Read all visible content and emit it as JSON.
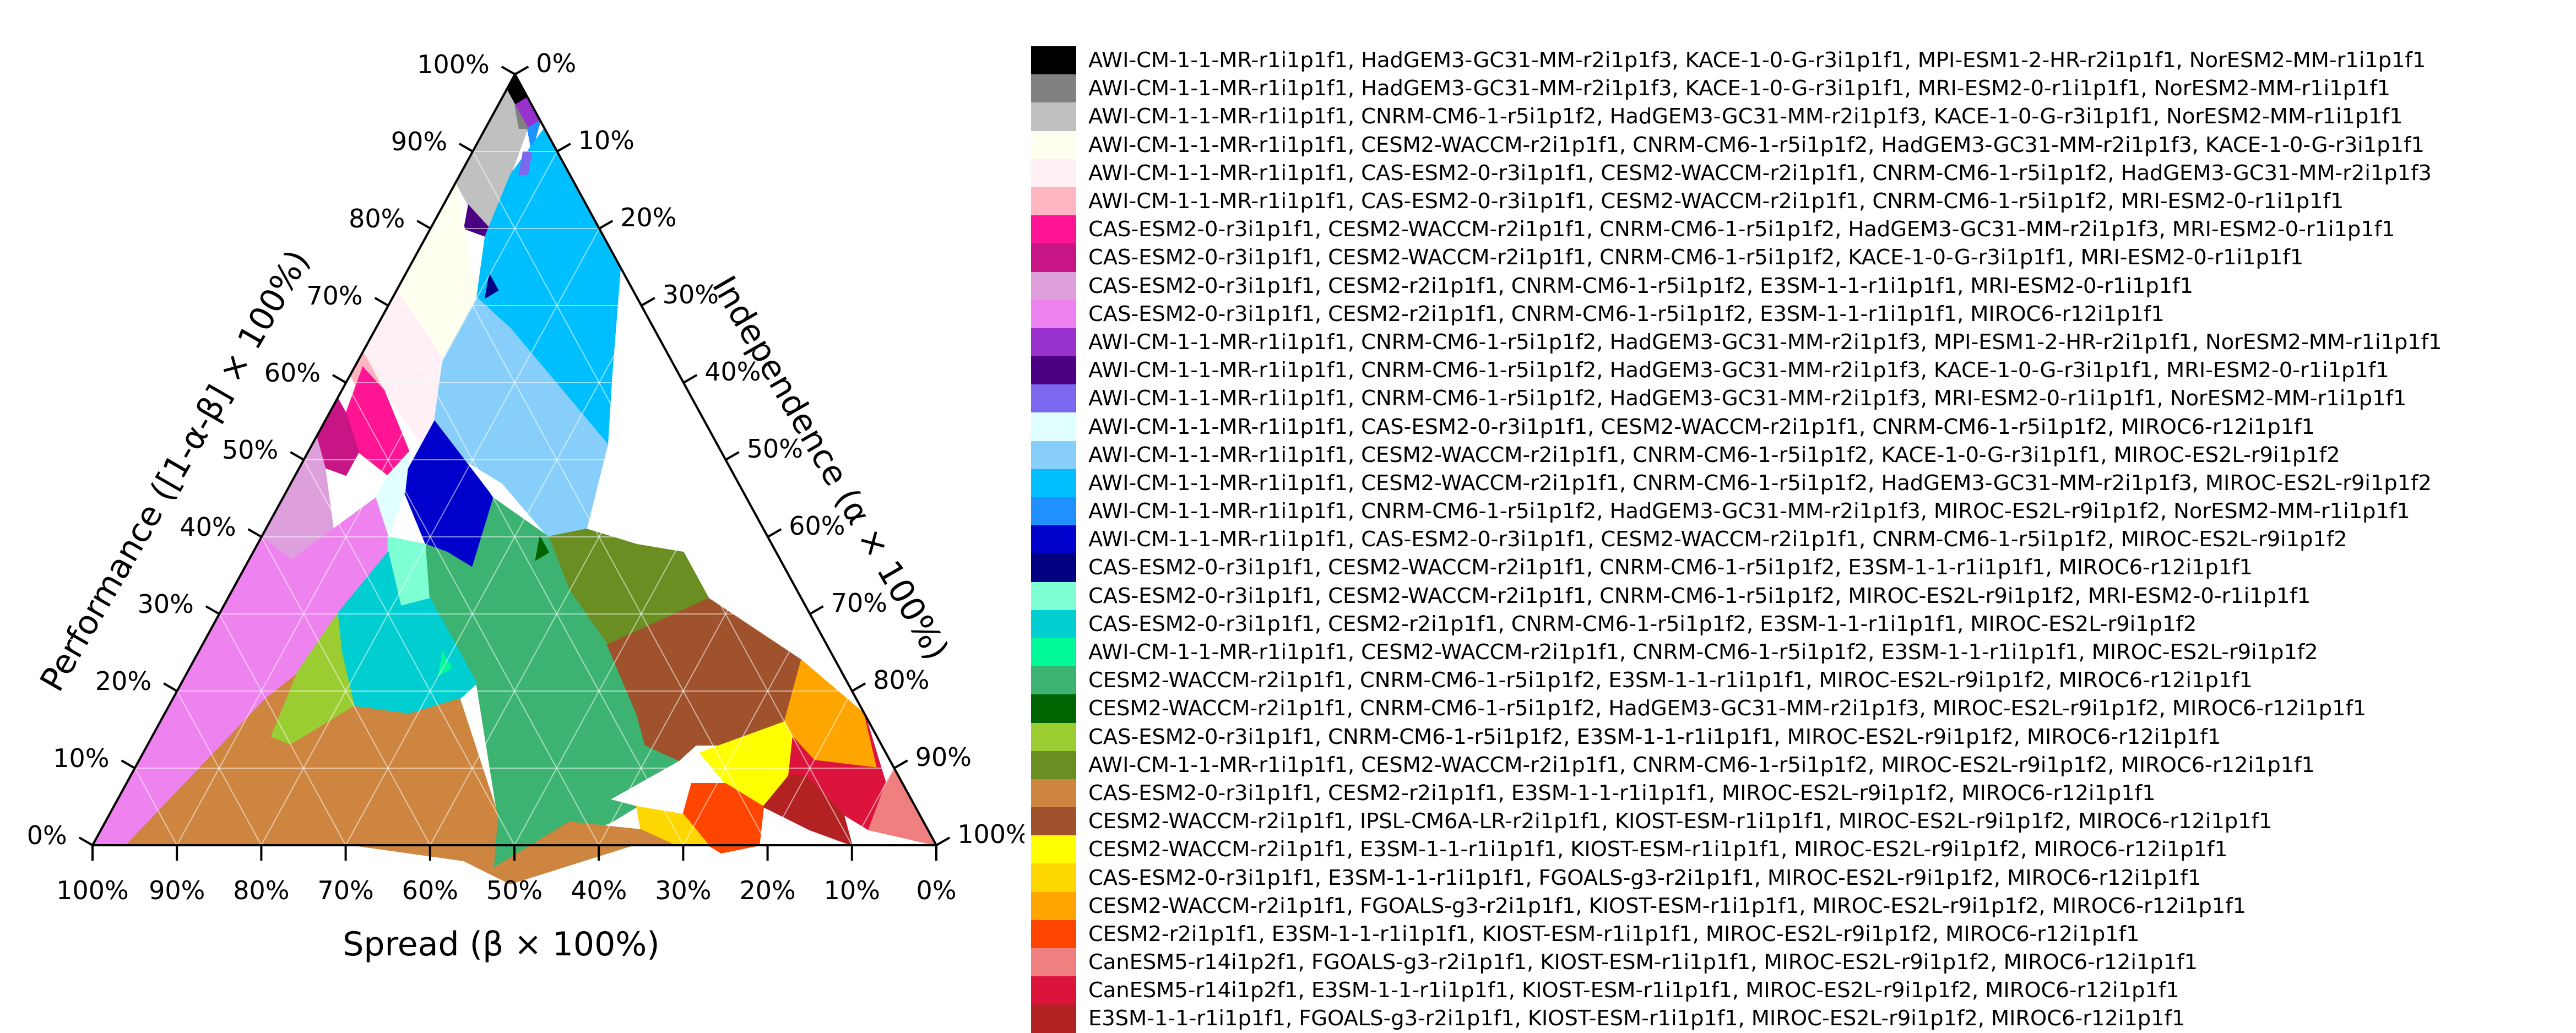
{
  "chart_data": {
    "type": "ternary",
    "axes": {
      "left": {
        "label": "Performance ([1-α-β] × 100%)",
        "ticks": [
          "0%",
          "10%",
          "20%",
          "30%",
          "40%",
          "50%",
          "60%",
          "70%",
          "80%",
          "90%",
          "100%"
        ]
      },
      "right": {
        "label": "Independence (α × 100%)",
        "ticks": [
          "0%",
          "10%",
          "20%",
          "30%",
          "40%",
          "50%",
          "60%",
          "70%",
          "80%",
          "90%",
          "100%"
        ]
      },
      "bottom": {
        "label": "Spread  (β × 100%)",
        "ticks": [
          "100%",
          "90%",
          "80%",
          "70%",
          "60%",
          "50%",
          "40%",
          "30%",
          "20%",
          "10%",
          "0%"
        ]
      }
    },
    "grid": true,
    "legend_position": "right",
    "regions": [
      {
        "label": "AWI-CM-1-1-MR-r1i1p1f1, HadGEM3-GC31-MM-r2i1p1f3, KACE-1-0-G-r3i1p1f1, MPI-ESM1-2-HR-r2i1p1f1, NorESM2-MM-r1i1p1f1",
        "color": "#000000"
      },
      {
        "label": "AWI-CM-1-1-MR-r1i1p1f1, HadGEM3-GC31-MM-r2i1p1f3, KACE-1-0-G-r3i1p1f1, MRI-ESM2-0-r1i1p1f1, NorESM2-MM-r1i1p1f1",
        "color": "#808080"
      },
      {
        "label": "AWI-CM-1-1-MR-r1i1p1f1, CNRM-CM6-1-r5i1p1f2, HadGEM3-GC31-MM-r2i1p1f3, KACE-1-0-G-r3i1p1f1, NorESM2-MM-r1i1p1f1",
        "color": "#c0c0c0"
      },
      {
        "label": "AWI-CM-1-1-MR-r1i1p1f1, CESM2-WACCM-r2i1p1f1, CNRM-CM6-1-r5i1p1f2, HadGEM3-GC31-MM-r2i1p1f3, KACE-1-0-G-r3i1p1f1",
        "color": "#fffff0"
      },
      {
        "label": "AWI-CM-1-1-MR-r1i1p1f1, CAS-ESM2-0-r3i1p1f1, CESM2-WACCM-r2i1p1f1, CNRM-CM6-1-r5i1p1f2, HadGEM3-GC31-MM-r2i1p1f3",
        "color": "#fff0f5"
      },
      {
        "label": "AWI-CM-1-1-MR-r1i1p1f1, CAS-ESM2-0-r3i1p1f1, CESM2-WACCM-r2i1p1f1, CNRM-CM6-1-r5i1p1f2, MRI-ESM2-0-r1i1p1f1",
        "color": "#ffb6c1"
      },
      {
        "label": "CAS-ESM2-0-r3i1p1f1, CESM2-WACCM-r2i1p1f1, CNRM-CM6-1-r5i1p1f2, HadGEM3-GC31-MM-r2i1p1f3, MRI-ESM2-0-r1i1p1f1",
        "color": "#ff1493"
      },
      {
        "label": "CAS-ESM2-0-r3i1p1f1, CESM2-WACCM-r2i1p1f1, CNRM-CM6-1-r5i1p1f2, KACE-1-0-G-r3i1p1f1, MRI-ESM2-0-r1i1p1f1",
        "color": "#c71585"
      },
      {
        "label": "CAS-ESM2-0-r3i1p1f1, CESM2-r2i1p1f1, CNRM-CM6-1-r5i1p1f2, E3SM-1-1-r1i1p1f1, MRI-ESM2-0-r1i1p1f1",
        "color": "#dda0dd"
      },
      {
        "label": "CAS-ESM2-0-r3i1p1f1, CESM2-r2i1p1f1, CNRM-CM6-1-r5i1p1f2, E3SM-1-1-r1i1p1f1, MIROC6-r12i1p1f1",
        "color": "#ee82ee"
      },
      {
        "label": "AWI-CM-1-1-MR-r1i1p1f1, CNRM-CM6-1-r5i1p1f2, HadGEM3-GC31-MM-r2i1p1f3, MPI-ESM1-2-HR-r2i1p1f1, NorESM2-MM-r1i1p1f1",
        "color": "#9932cc"
      },
      {
        "label": "AWI-CM-1-1-MR-r1i1p1f1, CNRM-CM6-1-r5i1p1f2, HadGEM3-GC31-MM-r2i1p1f3, KACE-1-0-G-r3i1p1f1, MRI-ESM2-0-r1i1p1f1",
        "color": "#4b0082"
      },
      {
        "label": "AWI-CM-1-1-MR-r1i1p1f1, CNRM-CM6-1-r5i1p1f2, HadGEM3-GC31-MM-r2i1p1f3, MRI-ESM2-0-r1i1p1f1, NorESM2-MM-r1i1p1f1",
        "color": "#7b68ee"
      },
      {
        "label": "AWI-CM-1-1-MR-r1i1p1f1, CAS-ESM2-0-r3i1p1f1, CESM2-WACCM-r2i1p1f1, CNRM-CM6-1-r5i1p1f2, MIROC6-r12i1p1f1",
        "color": "#e0ffff"
      },
      {
        "label": "AWI-CM-1-1-MR-r1i1p1f1, CESM2-WACCM-r2i1p1f1, CNRM-CM6-1-r5i1p1f2, KACE-1-0-G-r3i1p1f1, MIROC-ES2L-r9i1p1f2",
        "color": "#87cefa"
      },
      {
        "label": "AWI-CM-1-1-MR-r1i1p1f1, CESM2-WACCM-r2i1p1f1, CNRM-CM6-1-r5i1p1f2, HadGEM3-GC31-MM-r2i1p1f3, MIROC-ES2L-r9i1p1f2",
        "color": "#00bfff"
      },
      {
        "label": "AWI-CM-1-1-MR-r1i1p1f1, CNRM-CM6-1-r5i1p1f2, HadGEM3-GC31-MM-r2i1p1f3, MIROC-ES2L-r9i1p1f2, NorESM2-MM-r1i1p1f1",
        "color": "#1e90ff"
      },
      {
        "label": "AWI-CM-1-1-MR-r1i1p1f1, CAS-ESM2-0-r3i1p1f1, CESM2-WACCM-r2i1p1f1, CNRM-CM6-1-r5i1p1f2, MIROC-ES2L-r9i1p1f2",
        "color": "#0000cd"
      },
      {
        "label": "CAS-ESM2-0-r3i1p1f1, CESM2-WACCM-r2i1p1f1, CNRM-CM6-1-r5i1p1f2, E3SM-1-1-r1i1p1f1, MIROC6-r12i1p1f1",
        "color": "#000080"
      },
      {
        "label": "CAS-ESM2-0-r3i1p1f1, CESM2-WACCM-r2i1p1f1, CNRM-CM6-1-r5i1p1f2, MIROC-ES2L-r9i1p1f2, MRI-ESM2-0-r1i1p1f1",
        "color": "#7fffd4"
      },
      {
        "label": "CAS-ESM2-0-r3i1p1f1, CESM2-r2i1p1f1, CNRM-CM6-1-r5i1p1f2, E3SM-1-1-r1i1p1f1, MIROC-ES2L-r9i1p1f2",
        "color": "#00ced1"
      },
      {
        "label": "AWI-CM-1-1-MR-r1i1p1f1, CESM2-WACCM-r2i1p1f1, CNRM-CM6-1-r5i1p1f2, E3SM-1-1-r1i1p1f1, MIROC-ES2L-r9i1p1f2",
        "color": "#00fa9a"
      },
      {
        "label": "CESM2-WACCM-r2i1p1f1, CNRM-CM6-1-r5i1p1f2, E3SM-1-1-r1i1p1f1, MIROC-ES2L-r9i1p1f2, MIROC6-r12i1p1f1",
        "color": "#3cb371"
      },
      {
        "label": "CESM2-WACCM-r2i1p1f1, CNRM-CM6-1-r5i1p1f2, HadGEM3-GC31-MM-r2i1p1f3, MIROC-ES2L-r9i1p1f2, MIROC6-r12i1p1f1",
        "color": "#006400"
      },
      {
        "label": "CAS-ESM2-0-r3i1p1f1, CNRM-CM6-1-r5i1p1f2, E3SM-1-1-r1i1p1f1, MIROC-ES2L-r9i1p1f2, MIROC6-r12i1p1f1",
        "color": "#9acd32"
      },
      {
        "label": "AWI-CM-1-1-MR-r1i1p1f1, CESM2-WACCM-r2i1p1f1, CNRM-CM6-1-r5i1p1f2, MIROC-ES2L-r9i1p1f2, MIROC6-r12i1p1f1",
        "color": "#6b8e23"
      },
      {
        "label": "CAS-ESM2-0-r3i1p1f1, CESM2-r2i1p1f1, E3SM-1-1-r1i1p1f1, MIROC-ES2L-r9i1p1f2, MIROC6-r12i1p1f1",
        "color": "#cd853f"
      },
      {
        "label": "CESM2-WACCM-r2i1p1f1, IPSL-CM6A-LR-r2i1p1f1, KIOST-ESM-r1i1p1f1, MIROC-ES2L-r9i1p1f2, MIROC6-r12i1p1f1",
        "color": "#a0522d"
      },
      {
        "label": "CESM2-WACCM-r2i1p1f1, E3SM-1-1-r1i1p1f1, KIOST-ESM-r1i1p1f1, MIROC-ES2L-r9i1p1f2, MIROC6-r12i1p1f1",
        "color": "#ffff00"
      },
      {
        "label": "CAS-ESM2-0-r3i1p1f1, E3SM-1-1-r1i1p1f1, FGOALS-g3-r2i1p1f1, MIROC-ES2L-r9i1p1f2, MIROC6-r12i1p1f1",
        "color": "#ffd700"
      },
      {
        "label": "CESM2-WACCM-r2i1p1f1, FGOALS-g3-r2i1p1f1, KIOST-ESM-r1i1p1f1, MIROC-ES2L-r9i1p1f2, MIROC6-r12i1p1f1",
        "color": "#ffa500"
      },
      {
        "label": "CESM2-r2i1p1f1, E3SM-1-1-r1i1p1f1, KIOST-ESM-r1i1p1f1, MIROC-ES2L-r9i1p1f2, MIROC6-r12i1p1f1",
        "color": "#ff4500"
      },
      {
        "label": "CanESM5-r14i1p2f1, FGOALS-g3-r2i1p1f1, KIOST-ESM-r1i1p1f1, MIROC-ES2L-r9i1p1f2, MIROC6-r12i1p1f1",
        "color": "#f08080"
      },
      {
        "label": "CanESM5-r14i1p2f1, E3SM-1-1-r1i1p1f1, KIOST-ESM-r1i1p1f1, MIROC-ES2L-r9i1p1f2, MIROC6-r12i1p1f1",
        "color": "#dc143c"
      },
      {
        "label": "E3SM-1-1-r1i1p1f1, FGOALS-g3-r2i1p1f1, KIOST-ESM-r1i1p1f1, MIROC-ES2L-r9i1p1f2, MIROC6-r12i1p1f1",
        "color": "#b22222"
      }
    ]
  }
}
